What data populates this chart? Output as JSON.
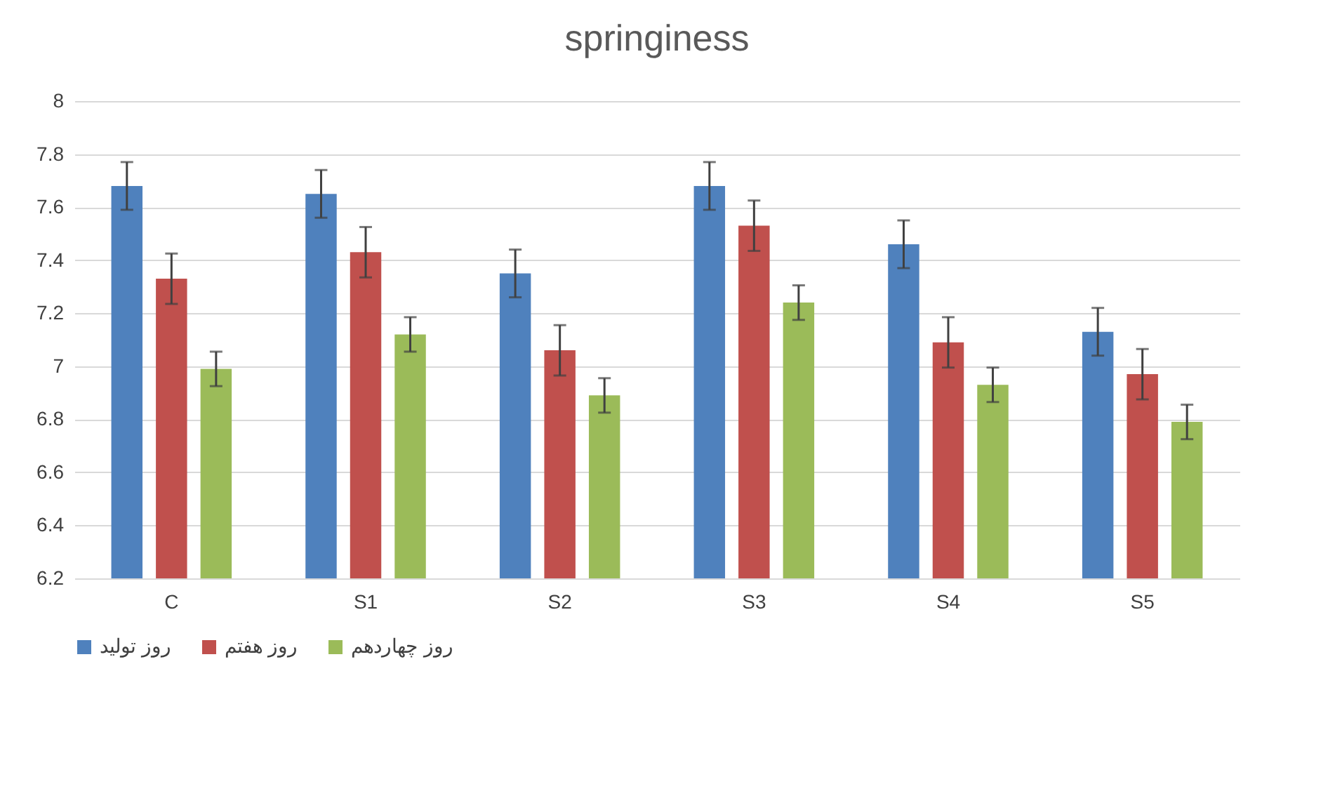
{
  "chart_data": {
    "type": "bar",
    "title": "springiness",
    "categories": [
      "C",
      "S1",
      "S2",
      "S3",
      "S4",
      "S5"
    ],
    "series": [
      {
        "name": "روز تولید",
        "color": "#4f81bd",
        "values": [
          7.68,
          7.65,
          7.35,
          7.68,
          7.46,
          7.13
        ],
        "errors": [
          0.09,
          0.09,
          0.09,
          0.09,
          0.09,
          0.09
        ]
      },
      {
        "name": "روز هفتم",
        "color": "#c0504d",
        "values": [
          7.33,
          7.43,
          7.06,
          7.53,
          7.09,
          6.97
        ],
        "errors": [
          0.095,
          0.095,
          0.095,
          0.095,
          0.095,
          0.095
        ]
      },
      {
        "name": "روز چهاردهم",
        "color": "#9bbb59",
        "values": [
          6.99,
          7.12,
          6.89,
          7.24,
          6.93,
          6.79
        ],
        "errors": [
          0.065,
          0.065,
          0.065,
          0.065,
          0.065,
          0.065
        ]
      }
    ],
    "ylim": [
      6.2,
      8
    ],
    "yticks": [
      6.2,
      6.4,
      6.6,
      6.8,
      7,
      7.2,
      7.4,
      7.6,
      7.8,
      8
    ],
    "grid": "y",
    "legend": "bottom"
  }
}
